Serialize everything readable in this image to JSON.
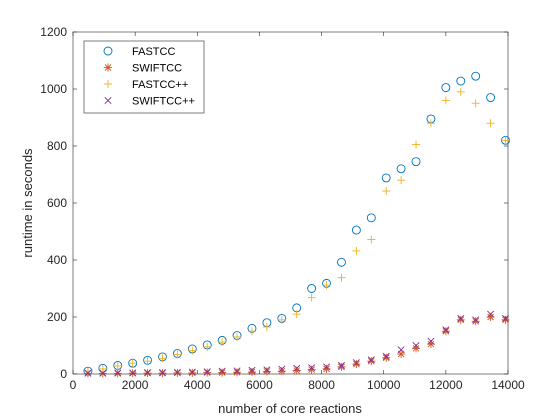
{
  "chart_data": {
    "type": "scatter",
    "title": "",
    "xlabel": "number of core reactions",
    "ylabel": "runtime in seconds",
    "xlim": [
      0,
      14000
    ],
    "ylim": [
      0,
      1200
    ],
    "xticks": [
      0,
      2000,
      4000,
      6000,
      8000,
      10000,
      12000,
      14000
    ],
    "yticks": [
      0,
      200,
      400,
      600,
      800,
      1000,
      1200
    ],
    "xtick_labels": [
      "0",
      "2000",
      "4000",
      "6000",
      "8000",
      "10000",
      "12000",
      "14000"
    ],
    "ytick_labels": [
      "0",
      "200",
      "400",
      "600",
      "800",
      "1000",
      "1200"
    ],
    "grid": false,
    "legend_position": "top-left",
    "series": [
      {
        "name": "FASTCC",
        "marker": "circle",
        "color": "#0072BD",
        "points": [
          [
            480,
            10
          ],
          [
            960,
            20
          ],
          [
            1440,
            30
          ],
          [
            1920,
            38
          ],
          [
            2400,
            48
          ],
          [
            2880,
            60
          ],
          [
            3360,
            72
          ],
          [
            3840,
            88
          ],
          [
            4320,
            102
          ],
          [
            4800,
            118
          ],
          [
            5280,
            135
          ],
          [
            5760,
            160
          ],
          [
            6240,
            180
          ],
          [
            6720,
            195
          ],
          [
            7200,
            232
          ],
          [
            7680,
            300
          ],
          [
            8160,
            318
          ],
          [
            8640,
            392
          ],
          [
            9120,
            505
          ],
          [
            9600,
            548
          ],
          [
            10080,
            688
          ],
          [
            10560,
            720
          ],
          [
            11040,
            745
          ],
          [
            11520,
            895
          ],
          [
            12000,
            1005
          ],
          [
            12480,
            1028
          ],
          [
            12960,
            1045
          ],
          [
            13440,
            970
          ],
          [
            13920,
            820
          ]
        ]
      },
      {
        "name": "SWIFTCC",
        "marker": "asterisk",
        "color": "#D95319",
        "points": [
          [
            480,
            2
          ],
          [
            960,
            2
          ],
          [
            1440,
            2
          ],
          [
            1920,
            3
          ],
          [
            2400,
            3
          ],
          [
            2880,
            3
          ],
          [
            3360,
            4
          ],
          [
            3840,
            4
          ],
          [
            4320,
            5
          ],
          [
            4800,
            5
          ],
          [
            5280,
            6
          ],
          [
            5760,
            7
          ],
          [
            6240,
            9
          ],
          [
            6720,
            10
          ],
          [
            7200,
            12
          ],
          [
            7680,
            15
          ],
          [
            8160,
            18
          ],
          [
            8640,
            25
          ],
          [
            9120,
            35
          ],
          [
            9600,
            45
          ],
          [
            10080,
            57
          ],
          [
            10560,
            70
          ],
          [
            11040,
            90
          ],
          [
            11520,
            105
          ],
          [
            12000,
            150
          ],
          [
            12480,
            190
          ],
          [
            12960,
            185
          ],
          [
            13440,
            200
          ],
          [
            13920,
            190
          ]
        ]
      },
      {
        "name": "FASTCC++",
        "marker": "plus",
        "color": "#EDB120",
        "points": [
          [
            480,
            10
          ],
          [
            960,
            18
          ],
          [
            1440,
            28
          ],
          [
            1920,
            38
          ],
          [
            2400,
            45
          ],
          [
            2880,
            55
          ],
          [
            3360,
            68
          ],
          [
            3840,
            82
          ],
          [
            4320,
            95
          ],
          [
            4800,
            112
          ],
          [
            5280,
            130
          ],
          [
            5760,
            150
          ],
          [
            6240,
            165
          ],
          [
            6720,
            190
          ],
          [
            7200,
            210
          ],
          [
            7680,
            268
          ],
          [
            8160,
            312
          ],
          [
            8640,
            338
          ],
          [
            9120,
            432
          ],
          [
            9600,
            472
          ],
          [
            10080,
            642
          ],
          [
            10560,
            680
          ],
          [
            11040,
            805
          ],
          [
            11520,
            880
          ],
          [
            12000,
            960
          ],
          [
            12480,
            990
          ],
          [
            12960,
            950
          ],
          [
            13440,
            880
          ],
          [
            13920,
            820
          ]
        ]
      },
      {
        "name": "SWIFTCC++",
        "marker": "x",
        "color": "#7E2F8E",
        "points": [
          [
            480,
            3
          ],
          [
            960,
            3
          ],
          [
            1440,
            4
          ],
          [
            1920,
            4
          ],
          [
            2400,
            5
          ],
          [
            2880,
            5
          ],
          [
            3360,
            6
          ],
          [
            3840,
            7
          ],
          [
            4320,
            8
          ],
          [
            4800,
            10
          ],
          [
            5280,
            11
          ],
          [
            5760,
            13
          ],
          [
            6240,
            15
          ],
          [
            6720,
            17
          ],
          [
            7200,
            20
          ],
          [
            7680,
            22
          ],
          [
            8160,
            25
          ],
          [
            8640,
            30
          ],
          [
            9120,
            40
          ],
          [
            9600,
            50
          ],
          [
            10080,
            62
          ],
          [
            10560,
            85
          ],
          [
            11040,
            100
          ],
          [
            11520,
            115
          ],
          [
            12000,
            155
          ],
          [
            12480,
            195
          ],
          [
            12960,
            190
          ],
          [
            13440,
            210
          ],
          [
            13920,
            195
          ]
        ]
      }
    ]
  }
}
